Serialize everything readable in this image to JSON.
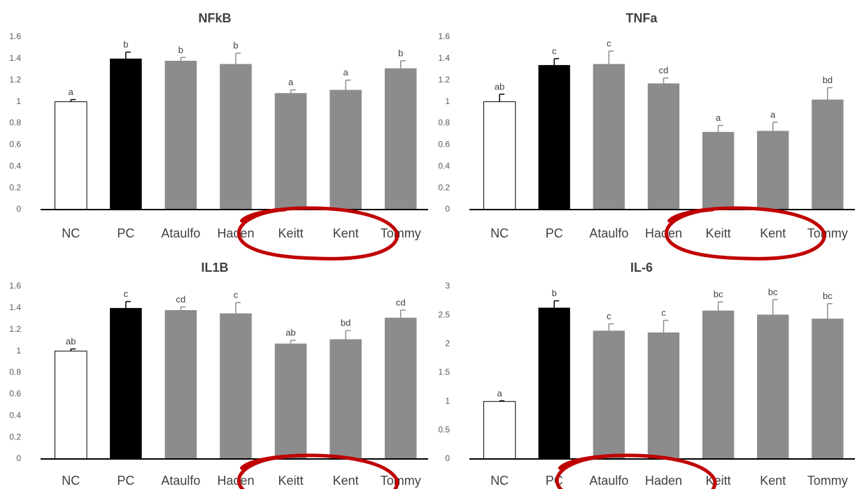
{
  "colors": {
    "nc_fill": "#ffffff",
    "pc_fill": "#000000",
    "mango_fill": "#8c8c8c",
    "bar_edge": "#000000",
    "annotation_circle": "#c00000"
  },
  "chart_data": [
    {
      "type": "bar",
      "title": "NFkB",
      "categories": [
        "NC",
        "PC",
        "Ataulfo",
        "Haden",
        "Keitt",
        "Kent",
        "Tommy"
      ],
      "values": [
        1.0,
        1.4,
        1.38,
        1.35,
        1.08,
        1.11,
        1.31
      ],
      "errors": [
        0.02,
        0.06,
        0.03,
        0.1,
        0.03,
        0.09,
        0.07
      ],
      "significance_labels": [
        "a",
        "b",
        "b",
        "b",
        "a",
        "a",
        "b"
      ],
      "ylim": [
        0,
        1.6
      ],
      "yticks": [
        0,
        0.2,
        0.4,
        0.6,
        0.8,
        1.0,
        1.2,
        1.4,
        1.6
      ],
      "ytick_labels": [
        "0",
        "0.2",
        "0.4",
        "0.6",
        "0.8",
        "1",
        "1.2",
        "1.4",
        "1.6"
      ],
      "highlighted_categories": [
        "Keitt",
        "Kent"
      ],
      "grid": false,
      "legend": "none"
    },
    {
      "type": "bar",
      "title": "TNFa",
      "categories": [
        "NC",
        "PC",
        "Ataulfo",
        "Haden",
        "Keitt",
        "Kent",
        "Tommy"
      ],
      "values": [
        1.0,
        1.34,
        1.35,
        1.17,
        0.72,
        0.73,
        1.02
      ],
      "errors": [
        0.07,
        0.06,
        0.12,
        0.05,
        0.06,
        0.08,
        0.11
      ],
      "significance_labels": [
        "ab",
        "c",
        "c",
        "cd",
        "a",
        "a",
        "bd"
      ],
      "ylim": [
        0,
        1.6
      ],
      "yticks": [
        0,
        0.2,
        0.4,
        0.6,
        0.8,
        1.0,
        1.2,
        1.4,
        1.6
      ],
      "ytick_labels": [
        "0",
        "0.2",
        "0.4",
        "0.6",
        "0.8",
        "1",
        "1.2",
        "1.4",
        "1.6"
      ],
      "highlighted_categories": [
        "Keitt",
        "Kent"
      ],
      "grid": false,
      "legend": "none"
    },
    {
      "type": "bar",
      "title": "IL1B",
      "categories": [
        "NC",
        "PC",
        "Ataulfo",
        "Haden",
        "Keitt",
        "Kent",
        "Tommy"
      ],
      "values": [
        1.0,
        1.4,
        1.38,
        1.35,
        1.07,
        1.11,
        1.31
      ],
      "errors": [
        0.02,
        0.06,
        0.03,
        0.1,
        0.03,
        0.08,
        0.07
      ],
      "significance_labels": [
        "ab",
        "c",
        "cd",
        "c",
        "ab",
        "bd",
        "cd"
      ],
      "ylim": [
        0,
        1.6
      ],
      "yticks": [
        0,
        0.2,
        0.4,
        0.6,
        0.8,
        1.0,
        1.2,
        1.4,
        1.6
      ],
      "ytick_labels": [
        "0",
        "0.2",
        "0.4",
        "0.6",
        "0.8",
        "1",
        "1.2",
        "1.4",
        "1.6"
      ],
      "highlighted_categories": [
        "Keitt",
        "Kent"
      ],
      "grid": false,
      "legend": "none"
    },
    {
      "type": "bar",
      "title": "IL-6",
      "categories": [
        "NC",
        "PC",
        "Ataulfo",
        "Haden",
        "Keitt",
        "Kent",
        "Tommy"
      ],
      "values": [
        1.0,
        2.63,
        2.23,
        2.2,
        2.58,
        2.51,
        2.44
      ],
      "errors": [
        0.01,
        0.12,
        0.12,
        0.21,
        0.15,
        0.26,
        0.26
      ],
      "significance_labels": [
        "a",
        "b",
        "c",
        "c",
        "bc",
        "bc",
        "bc"
      ],
      "ylim": [
        0,
        3
      ],
      "yticks": [
        0,
        0.5,
        1.0,
        1.5,
        2.0,
        2.5,
        3.0
      ],
      "ytick_labels": [
        "0",
        "0.5",
        "1",
        "1.5",
        "2",
        "2.5",
        "3"
      ],
      "highlighted_categories": [
        "Ataulfo",
        "Haden"
      ],
      "grid": false,
      "legend": "none"
    }
  ]
}
